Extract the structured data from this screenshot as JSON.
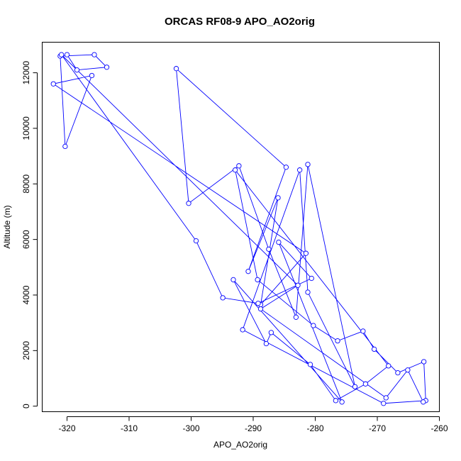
{
  "chart_data": {
    "type": "line",
    "title": "ORCAS RF08-9 APO_AO2orig",
    "xlabel": "APO_AO2orig",
    "ylabel": "Altitude (m)",
    "xlim": [
      -324,
      -260
    ],
    "ylim": [
      -200,
      13100
    ],
    "xticks": [
      -320,
      -310,
      -300,
      -290,
      -280,
      -270,
      -260
    ],
    "yticks": [
      0,
      2000,
      4000,
      6000,
      8000,
      10000,
      12000
    ],
    "grid": false,
    "line_color": "#0000ff",
    "marker": "open-circle",
    "series": [
      {
        "x": [
          -320.0,
          -318.4,
          -313.6,
          -315.6,
          -321.1,
          -320.3,
          -316.0,
          -322.2,
          -281.5,
          -288.8,
          -286.0,
          -290.8,
          -284.7,
          -302.4,
          -300.4,
          -292.3,
          -287.5,
          -283.1,
          -281.2,
          -273.6,
          -281.2,
          -282.5,
          -291.7,
          -269.0,
          -262.2,
          -262.5,
          -266.7,
          -270.5,
          -272.3,
          -276.4,
          -280.3,
          -289.3,
          -292.9,
          -268.2,
          -271.9,
          -276.7,
          -280.8,
          -287.1,
          -287.9,
          -293.2,
          -275.7,
          -285.9,
          -280.6,
          -289.2,
          -294.9,
          -299.2,
          -320.9,
          -282.8,
          -288.8,
          -268.6,
          -265.1,
          -262.6
        ],
        "y": [
          12650,
          12100,
          12200,
          12650,
          12600,
          9350,
          11900,
          11600,
          5500,
          3650,
          7500,
          4850,
          8600,
          12150,
          7300,
          8650,
          5650,
          3200,
          8700,
          700,
          4100,
          8500,
          2750,
          100,
          200,
          1600,
          1200,
          2050,
          2700,
          2350,
          2900,
          4550,
          8500,
          1450,
          800,
          200,
          1500,
          2650,
          2250,
          4550,
          150,
          5900,
          4600,
          3700,
          3900,
          5950,
          12650,
          4350,
          3500,
          300,
          1300,
          150
        ]
      }
    ]
  }
}
